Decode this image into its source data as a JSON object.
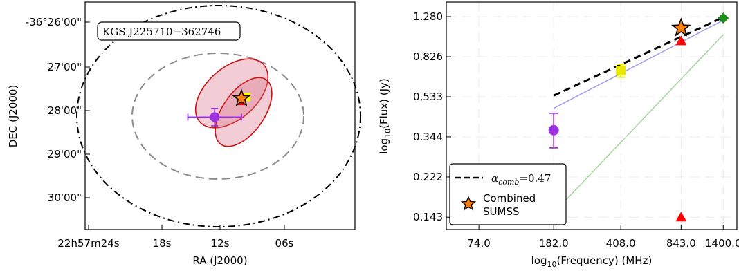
{
  "chart_data": [
    {
      "type": "scatter",
      "xlabel": "RA (J2000)",
      "ylabel": "DEC (J2000)",
      "x_ticks": [
        "22h57m24s",
        "18s",
        "12s",
        "06s"
      ],
      "y_ticks": [
        "-36°26'00\"",
        "27'00\"",
        "28'00\"",
        "29'00\"",
        "30'00\""
      ],
      "source_label": "KGS J225710−362746",
      "grid": false,
      "markers": [
        {
          "name": "purple-circle",
          "ra_s": 12.5,
          "dec_arcmin": 28.15,
          "ra_err_s": 2.5,
          "dec_err_arcmin": 0.2,
          "color": "#9b30e0"
        },
        {
          "name": "red-triangle",
          "ra_s": 10.0,
          "dec_arcmin": 27.78,
          "color": "#ff0000"
        },
        {
          "name": "yellow-square",
          "ra_s": 9.6,
          "dec_arcmin": 27.72,
          "color": "#ffff00"
        },
        {
          "name": "orange-star",
          "ra_s": 10.0,
          "dec_arcmin": 27.72,
          "color": "#ff7f0e"
        }
      ]
    },
    {
      "type": "line",
      "xlabel": "log10(Frequency) (MHz)",
      "ylabel": "log10(Flux) (Jy)",
      "xlabel_base": "log",
      "xlabel_sub": "10",
      "xlabel_rest": "(Frequency) (MHz)",
      "ylabel_base": "log",
      "ylabel_sub": "10",
      "ylabel_rest": "(Flux) (Jy)",
      "x_ticks": [
        74.0,
        182.0,
        408.0,
        843.0,
        1400.0
      ],
      "x_tick_labels": [
        "74.0",
        "182.0",
        "408.0",
        "843.0",
        "1400.0"
      ],
      "y_ticks": [
        0.143,
        0.222,
        0.344,
        0.533,
        0.826,
        1.28
      ],
      "y_tick_labels": [
        "0.143",
        "0.222",
        "0.344",
        "0.533",
        "0.826",
        "1.280"
      ],
      "xlim": [
        50,
        1650
      ],
      "ylim": [
        0.125,
        1.5
      ],
      "scale": "log-log",
      "legend_position": "lower-left",
      "legend": {
        "alpha_label": "α",
        "alpha_sub": "comb",
        "alpha_value": "=0.47",
        "entry_1": "Combined",
        "entry_2": "SUMSS"
      },
      "series": [
        {
          "marker": "circle",
          "color": "#9b30e0",
          "points": [
            {
              "x": 182.0,
              "y": 0.37,
              "yerr_low": 0.305,
              "yerr_high": 0.445
            }
          ]
        },
        {
          "marker": "square",
          "color": "#e8e800",
          "points": [
            {
              "x": 408.0,
              "y": 0.71,
              "yerr_low": 0.66,
              "yerr_high": 0.76
            }
          ]
        },
        {
          "marker": "triangle",
          "color": "#ff0000",
          "points": [
            {
              "x": 843.0,
              "y": 0.98
            },
            {
              "x": 843.0,
              "y": 0.143
            }
          ]
        },
        {
          "marker": "star",
          "color": "#ff7f0e",
          "points": [
            {
              "x": 843.0,
              "y": 1.13
            }
          ]
        },
        {
          "marker": "diamond",
          "color": "#1a8c1a",
          "points": [
            {
              "x": 1400.0,
              "y": 1.26
            }
          ]
        }
      ],
      "fit_lines": [
        {
          "name": "dashed-combined",
          "style": "dashed",
          "color": "#000000",
          "x": [
            182.0,
            1400.0
          ],
          "y": [
            0.54,
            1.27
          ]
        },
        {
          "name": "blue-fit",
          "style": "solid",
          "color": "#a0a0f0",
          "x": [
            182.0,
            1400.0
          ],
          "y": [
            0.47,
            1.23
          ]
        },
        {
          "name": "green-fit",
          "style": "solid",
          "color": "#a8d8a0",
          "x": [
            182.0,
            1400.0
          ],
          "y": [
            0.15,
            1.05
          ]
        }
      ]
    }
  ]
}
